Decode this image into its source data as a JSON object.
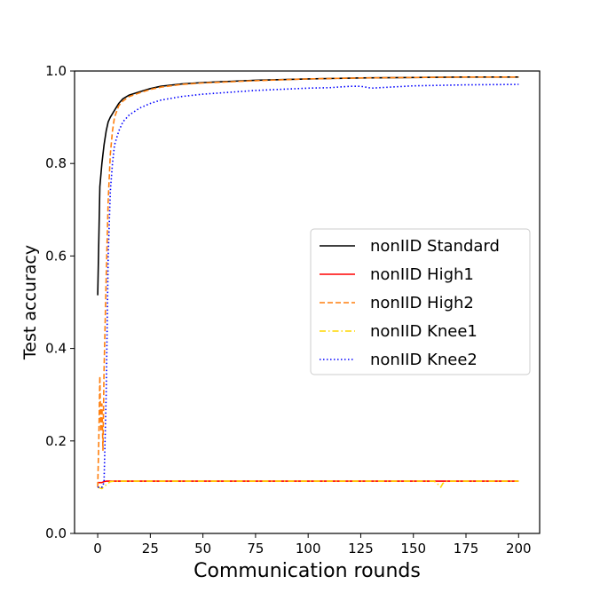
{
  "chart_data": {
    "type": "line",
    "xlabel": "Communication rounds",
    "ylabel": "Test accuracy",
    "xlim": [
      -11,
      210
    ],
    "ylim": [
      0.0,
      1.0
    ],
    "xticks": [
      0,
      25,
      50,
      75,
      100,
      125,
      150,
      175,
      200
    ],
    "yticks": [
      0.0,
      0.2,
      0.4,
      0.6,
      0.8,
      1.0
    ],
    "legend": "center-right",
    "grid": false,
    "series": [
      {
        "name": "nonIID Standard",
        "color": "#000000",
        "style": "solid",
        "x": [
          0,
          1,
          2,
          3,
          4,
          5,
          6,
          8,
          10,
          12,
          15,
          20,
          25,
          30,
          40,
          50,
          75,
          100,
          125,
          150,
          175,
          200
        ],
        "y": [
          0.515,
          0.75,
          0.8,
          0.84,
          0.87,
          0.89,
          0.9,
          0.915,
          0.93,
          0.94,
          0.948,
          0.955,
          0.962,
          0.967,
          0.972,
          0.975,
          0.98,
          0.983,
          0.985,
          0.986,
          0.987,
          0.987
        ]
      },
      {
        "name": "nonIID High1",
        "color": "#ff0000",
        "style": "solid",
        "x": [
          0,
          2,
          3,
          4,
          6,
          10,
          25,
          50,
          100,
          150,
          200
        ],
        "y": [
          0.11,
          0.11,
          0.112,
          0.113,
          0.113,
          0.113,
          0.113,
          0.113,
          0.113,
          0.113,
          0.113
        ]
      },
      {
        "name": "nonIID High2",
        "color": "#ff7f0e",
        "style": "dashed",
        "x": [
          0,
          0.5,
          1,
          1.5,
          2,
          2.5,
          3,
          4,
          5,
          6,
          7,
          8,
          10,
          12,
          15,
          20,
          25,
          30,
          40,
          50,
          75,
          100,
          125,
          150,
          175,
          200
        ],
        "y": [
          0.1,
          0.2,
          0.34,
          0.22,
          0.28,
          0.18,
          0.35,
          0.55,
          0.72,
          0.82,
          0.87,
          0.9,
          0.925,
          0.935,
          0.945,
          0.953,
          0.96,
          0.965,
          0.971,
          0.974,
          0.979,
          0.983,
          0.985,
          0.986,
          0.987,
          0.987
        ]
      },
      {
        "name": "nonIID Knee1",
        "color": "#ffd700",
        "style": "dashdot",
        "x": [
          0,
          2,
          4,
          6,
          8,
          10,
          25,
          50,
          100,
          150,
          160,
          162,
          163,
          164,
          166,
          175,
          200
        ],
        "y": [
          0.1,
          0.097,
          0.105,
          0.112,
          0.113,
          0.113,
          0.113,
          0.113,
          0.113,
          0.113,
          0.113,
          0.105,
          0.1,
          0.108,
          0.113,
          0.113,
          0.113
        ]
      },
      {
        "name": "nonIID Knee2",
        "color": "#0000ff",
        "style": "dotted",
        "x": [
          0,
          1,
          2,
          3,
          4,
          5,
          6,
          7,
          8,
          10,
          12,
          15,
          20,
          25,
          30,
          40,
          50,
          75,
          100,
          110,
          120,
          125,
          130,
          150,
          175,
          200
        ],
        "y": [
          0.1,
          0.1,
          0.1,
          0.11,
          0.3,
          0.6,
          0.74,
          0.8,
          0.84,
          0.87,
          0.89,
          0.905,
          0.92,
          0.93,
          0.937,
          0.945,
          0.95,
          0.958,
          0.963,
          0.964,
          0.967,
          0.967,
          0.963,
          0.968,
          0.97,
          0.971
        ]
      }
    ]
  }
}
